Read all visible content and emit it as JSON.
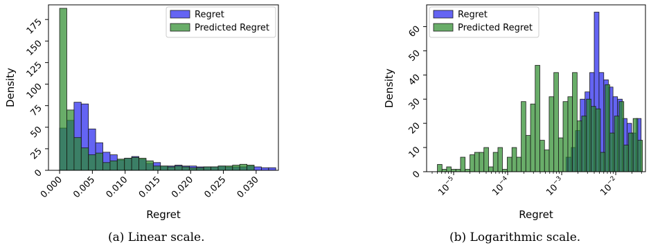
{
  "colors": {
    "regret": "#2222ee",
    "predicted": "#2a8a2a",
    "edge": "#1a1a1a",
    "axis": "#000000"
  },
  "captions": {
    "left": "(a) Linear scale.",
    "right": "(b) Logarithmic scale."
  },
  "chart_data": [
    {
      "type": "bar",
      "scale": "linear",
      "xlabel": "Regret",
      "ylabel": "Density",
      "xlim": [
        -0.0017,
        0.0334
      ],
      "ylim": [
        0,
        192
      ],
      "grid": false,
      "legend": "top-right",
      "xticks": [
        0.0,
        0.005,
        0.01,
        0.015,
        0.02,
        0.025,
        0.03
      ],
      "xtick_labels": [
        "0.000",
        "0.005",
        "0.010",
        "0.015",
        "0.020",
        "0.025",
        "0.030"
      ],
      "yticks": [
        0,
        25,
        50,
        75,
        100,
        125,
        150,
        175
      ],
      "ytick_labels": [
        "0",
        "25",
        "50",
        "75",
        "100",
        "125",
        "150",
        "175"
      ],
      "series": [
        {
          "name": "Regret",
          "color": "#2222ee",
          "bin_edges": [
            0.0,
            0.0011,
            0.0022,
            0.0033,
            0.0044,
            0.0055,
            0.0066,
            0.0077,
            0.0088,
            0.0099,
            0.011,
            0.0121,
            0.0132,
            0.0143,
            0.0154,
            0.0165,
            0.0176,
            0.0187,
            0.0198,
            0.0209,
            0.022,
            0.0231,
            0.0242,
            0.0253,
            0.0264,
            0.0275,
            0.0286,
            0.0297,
            0.0308,
            0.0319,
            0.033
          ],
          "values": [
            49,
            58,
            79,
            77,
            48,
            32,
            21,
            18,
            12,
            14,
            16,
            13,
            8,
            9,
            5,
            5,
            6,
            5,
            5,
            4,
            4,
            4,
            5,
            4,
            4,
            4,
            5,
            4,
            3,
            3
          ]
        },
        {
          "name": "Predicted Regret",
          "color": "#2a8a2a",
          "bin_edges": [
            0.0,
            0.0011,
            0.0022,
            0.0033,
            0.0044,
            0.0055,
            0.0066,
            0.0077,
            0.0088,
            0.0099,
            0.011,
            0.0121,
            0.0132,
            0.0143,
            0.0154,
            0.0165,
            0.0176,
            0.0187,
            0.0198,
            0.0209,
            0.022,
            0.0231,
            0.0242,
            0.0253,
            0.0264,
            0.0275,
            0.0286,
            0.0297
          ],
          "values": [
            188,
            70,
            38,
            26,
            18,
            20,
            9,
            11,
            13,
            14,
            15,
            14,
            11,
            5,
            5,
            4,
            5,
            4,
            3,
            3,
            4,
            4,
            5,
            5,
            6,
            7,
            6
          ]
        }
      ]
    },
    {
      "type": "bar",
      "scale": "log-x",
      "xlabel": "Regret",
      "ylabel": "Density",
      "xlim": [
        3.16e-06,
        0.0355
      ],
      "ylim": [
        0,
        69
      ],
      "grid": false,
      "legend": "top-left",
      "xticks": [
        1e-05,
        0.0001,
        0.001,
        0.01
      ],
      "xtick_labels": [
        {
          "base": "10",
          "exp": "−5"
        },
        {
          "base": "10",
          "exp": "−4"
        },
        {
          "base": "10",
          "exp": "−3"
        },
        {
          "base": "10",
          "exp": "−2"
        }
      ],
      "yticks": [
        0,
        10,
        20,
        30,
        40,
        50,
        60
      ],
      "ytick_labels": [
        "0",
        "10",
        "20",
        "30",
        "40",
        "50",
        "60"
      ],
      "series": [
        {
          "name": "Regret",
          "color": "#2222ee",
          "bin_edges": [
            0.0012,
            0.0015,
            0.0018,
            0.0022,
            0.0027,
            0.0033,
            0.004,
            0.0049,
            0.006,
            0.0073,
            0.0089,
            0.0108,
            0.0132,
            0.0162,
            0.0197,
            0.024,
            0.0295
          ],
          "values": [
            6,
            10,
            17,
            30,
            33,
            41,
            66,
            41,
            38,
            35,
            31,
            30,
            22,
            20,
            16,
            22
          ]
        },
        {
          "name": "Predicted Regret",
          "color": "#2a8a2a",
          "bin_edges": [
            5e-06,
            6.1e-06,
            7.4e-06,
            9e-06,
            1.1e-05,
            1.34e-05,
            1.63e-05,
            2e-05,
            2.44e-05,
            2.98e-05,
            3.63e-05,
            4.43e-05,
            5.4e-05,
            6.6e-05,
            8e-05,
            9.8e-05,
            0.00012,
            0.000146,
            0.000178,
            0.000217,
            0.000265,
            0.000323,
            0.000394,
            0.000481,
            0.000586,
            0.000715,
            0.000872,
            0.00106,
            0.0013,
            0.00158,
            0.00193,
            0.00235,
            0.00287,
            0.0035,
            0.00427,
            0.00521,
            0.00636,
            0.00776,
            0.00947,
            0.01155,
            0.0141,
            0.0172,
            0.021,
            0.0256,
            0.0312
          ],
          "values": [
            3,
            1,
            2,
            1,
            1,
            6,
            1,
            7,
            8,
            8,
            10,
            2,
            8,
            10,
            1,
            6,
            10,
            6,
            29,
            15,
            28,
            44,
            13,
            9,
            31,
            41,
            14,
            29,
            31,
            41,
            21,
            23,
            30,
            27,
            26,
            8,
            36,
            16,
            23,
            29,
            11,
            16,
            22,
            13
          ]
        }
      ]
    }
  ]
}
